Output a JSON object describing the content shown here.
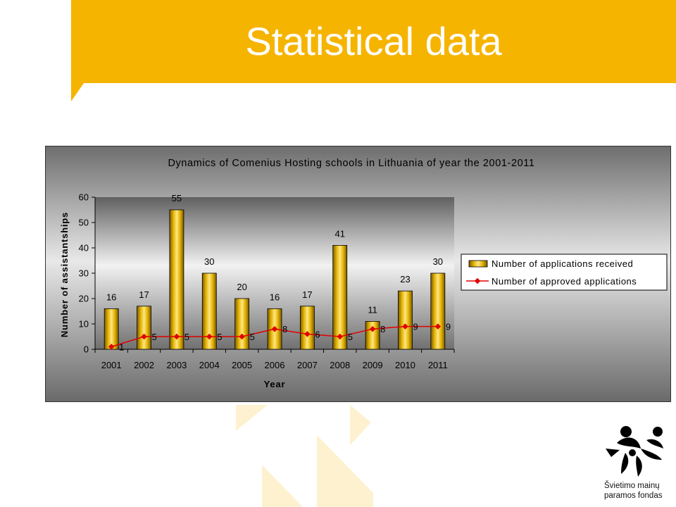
{
  "slide": {
    "title": "Statistical data",
    "colors": {
      "accent": "#f5b400",
      "deco": "#fdf1cf"
    }
  },
  "logo": {
    "line1": "Švietimo mainų",
    "line2": "paramos fondas",
    "icon": "people-figures-logo-icon"
  },
  "chart_data": {
    "type": "bar",
    "title": "Dynamics of Comenius Hosting schools in Lithuania of year the 2001-2011",
    "xlabel": "Year",
    "ylabel": "Number of assistantships",
    "ylim": [
      0,
      60
    ],
    "yticks": [
      0,
      10,
      20,
      30,
      40,
      50,
      60
    ],
    "categories": [
      "2001",
      "2002",
      "2003",
      "2004",
      "2005",
      "2006",
      "2007",
      "2008",
      "2009",
      "2010",
      "2011"
    ],
    "series": [
      {
        "name": "Number of applications received",
        "type": "bar",
        "color": "#f0c000",
        "values": [
          16,
          17,
          55,
          30,
          20,
          16,
          17,
          41,
          11,
          23,
          30
        ]
      },
      {
        "name": "Number of approved applications",
        "type": "line",
        "color": "#e00000",
        "values": [
          1,
          5,
          5,
          5,
          5,
          8,
          6,
          5,
          8,
          9,
          9
        ]
      }
    ],
    "legend": "right",
    "grid": false
  }
}
